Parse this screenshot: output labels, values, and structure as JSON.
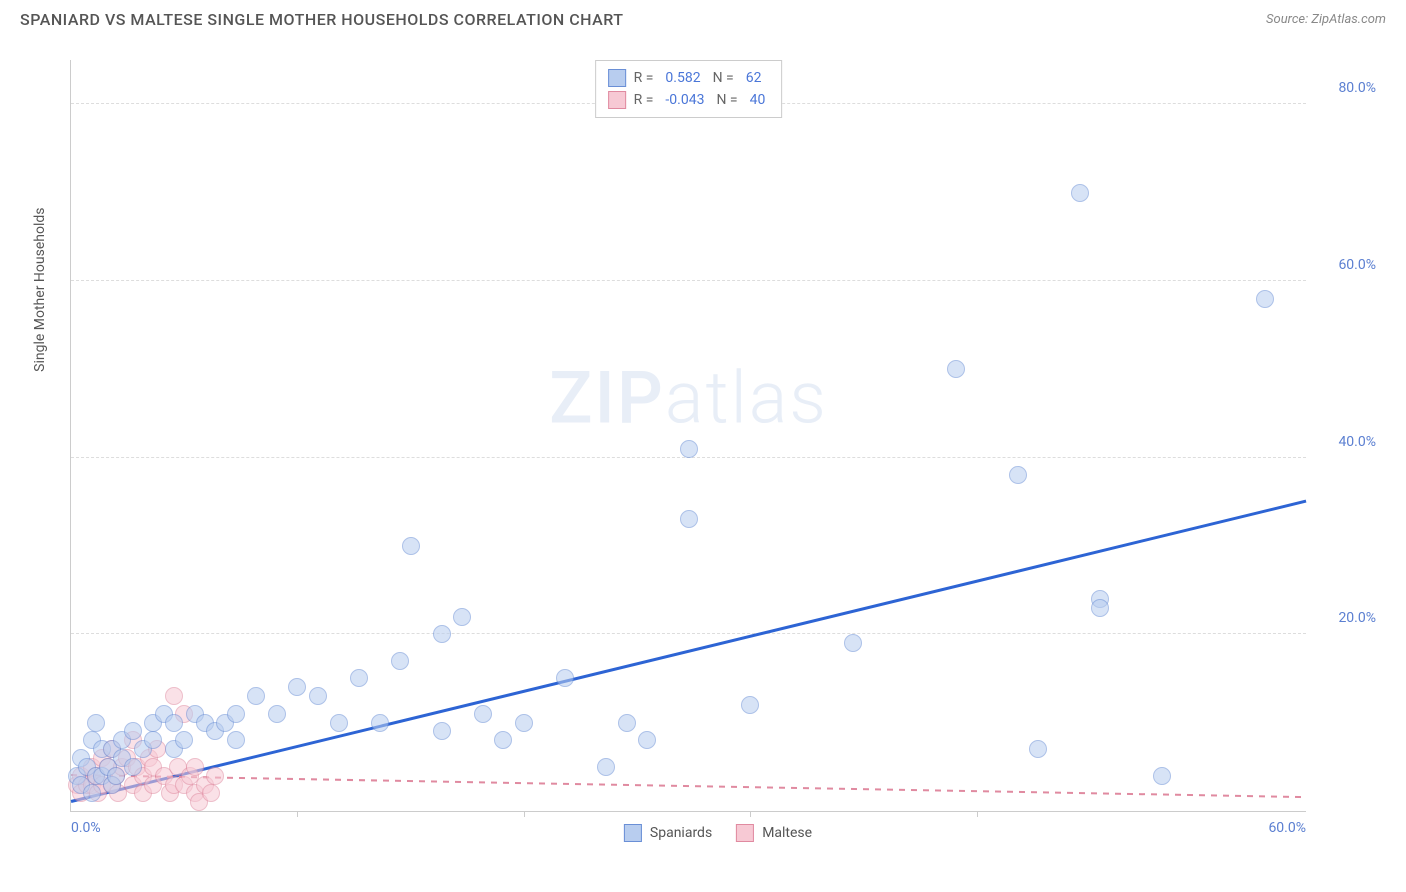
{
  "header": {
    "title": "SPANIARD VS MALTESE SINGLE MOTHER HOUSEHOLDS CORRELATION CHART",
    "source": "Source: ZipAtlas.com"
  },
  "watermark": {
    "zip": "ZIP",
    "atlas": "atlas"
  },
  "chart": {
    "type": "scatter",
    "background_color": "#ffffff",
    "grid_color": "#dddddd",
    "axis_color": "#cccccc",
    "y_label": "Single Mother Households",
    "y_label_color": "#555555",
    "label_fontsize": 14,
    "tick_color": "#5b7fd1",
    "tick_fontsize": 14,
    "xlim": [
      0,
      60
    ],
    "ylim": [
      0,
      85
    ],
    "x_ticks": [
      {
        "pos": 0,
        "label": "0.0%"
      },
      {
        "pos": 60,
        "label": "60.0%"
      }
    ],
    "y_ticks": [
      {
        "pos": 20,
        "label": "20.0%"
      },
      {
        "pos": 40,
        "label": "40.0%"
      },
      {
        "pos": 60,
        "label": "60.0%"
      },
      {
        "pos": 80,
        "label": "80.0%"
      }
    ],
    "x_minor_ticks": [
      11,
      22,
      33,
      44
    ],
    "series": {
      "spaniards": {
        "label": "Spaniards",
        "fill_color": "#b8cdef",
        "stroke_color": "#6a8fd6",
        "fill_opacity": 0.55,
        "marker_radius": 9,
        "R": "0.582",
        "N": "62",
        "trend": {
          "x1": 0,
          "y1": 1,
          "x2": 60,
          "y2": 35,
          "color": "#2d64d4",
          "width": 2.5,
          "dash": false
        },
        "points": [
          [
            0.3,
            4
          ],
          [
            0.5,
            6
          ],
          [
            0.5,
            3
          ],
          [
            0.8,
            5
          ],
          [
            1,
            8
          ],
          [
            1,
            2
          ],
          [
            1.2,
            10
          ],
          [
            1.2,
            4
          ],
          [
            1.5,
            7
          ],
          [
            1.5,
            4
          ],
          [
            1.8,
            5
          ],
          [
            2,
            7
          ],
          [
            2,
            3
          ],
          [
            2.2,
            4
          ],
          [
            2.5,
            8
          ],
          [
            2.5,
            6
          ],
          [
            3,
            9
          ],
          [
            3,
            5
          ],
          [
            3.5,
            7
          ],
          [
            4,
            10
          ],
          [
            4,
            8
          ],
          [
            4.5,
            11
          ],
          [
            5,
            7
          ],
          [
            5,
            10
          ],
          [
            5.5,
            8
          ],
          [
            6,
            11
          ],
          [
            6.5,
            10
          ],
          [
            7,
            9
          ],
          [
            7.5,
            10
          ],
          [
            8,
            8
          ],
          [
            8,
            11
          ],
          [
            9,
            13
          ],
          [
            10,
            11
          ],
          [
            11,
            14
          ],
          [
            12,
            13
          ],
          [
            13,
            10
          ],
          [
            14,
            15
          ],
          [
            15,
            10
          ],
          [
            16,
            17
          ],
          [
            16.5,
            30
          ],
          [
            18,
            20
          ],
          [
            18,
            9
          ],
          [
            19,
            22
          ],
          [
            20,
            11
          ],
          [
            21,
            8
          ],
          [
            22,
            10
          ],
          [
            24,
            15
          ],
          [
            26,
            5
          ],
          [
            27,
            10
          ],
          [
            28,
            8
          ],
          [
            30,
            41
          ],
          [
            30,
            33
          ],
          [
            33,
            12
          ],
          [
            38,
            19
          ],
          [
            43,
            50
          ],
          [
            46,
            38
          ],
          [
            47,
            7
          ],
          [
            49,
            70
          ],
          [
            50,
            24
          ],
          [
            50,
            23
          ],
          [
            53,
            4
          ],
          [
            58,
            58
          ]
        ]
      },
      "maltese": {
        "label": "Maltese",
        "fill_color": "#f7c9d4",
        "stroke_color": "#e08aa0",
        "fill_opacity": 0.55,
        "marker_radius": 9,
        "R": "-0.043",
        "N": "40",
        "trend": {
          "x1": 0,
          "y1": 4,
          "x2": 60,
          "y2": 1.5,
          "color": "#e08aa0",
          "width": 1.5,
          "dash": true
        },
        "points": [
          [
            0.3,
            3
          ],
          [
            0.5,
            2
          ],
          [
            0.5,
            4
          ],
          [
            0.8,
            3
          ],
          [
            1,
            5
          ],
          [
            1,
            3
          ],
          [
            1.2,
            4
          ],
          [
            1.3,
            2
          ],
          [
            1.5,
            6
          ],
          [
            1.5,
            3
          ],
          [
            1.8,
            5
          ],
          [
            2,
            7
          ],
          [
            2,
            3
          ],
          [
            2.2,
            4
          ],
          [
            2.3,
            2
          ],
          [
            2.5,
            5
          ],
          [
            2.7,
            6
          ],
          [
            3,
            3
          ],
          [
            3,
            8
          ],
          [
            3.2,
            5
          ],
          [
            3.5,
            4
          ],
          [
            3.5,
            2
          ],
          [
            3.8,
            6
          ],
          [
            4,
            3
          ],
          [
            4,
            5
          ],
          [
            4.2,
            7
          ],
          [
            4.5,
            4
          ],
          [
            4.8,
            2
          ],
          [
            5,
            3
          ],
          [
            5,
            13
          ],
          [
            5.2,
            5
          ],
          [
            5.5,
            11
          ],
          [
            5.5,
            3
          ],
          [
            5.8,
            4
          ],
          [
            6,
            2
          ],
          [
            6,
            5
          ],
          [
            6.2,
            1
          ],
          [
            6.5,
            3
          ],
          [
            6.8,
            2
          ],
          [
            7,
            4
          ]
        ]
      }
    },
    "legend_top": {
      "R_label": "R =",
      "N_label": "N ="
    }
  }
}
